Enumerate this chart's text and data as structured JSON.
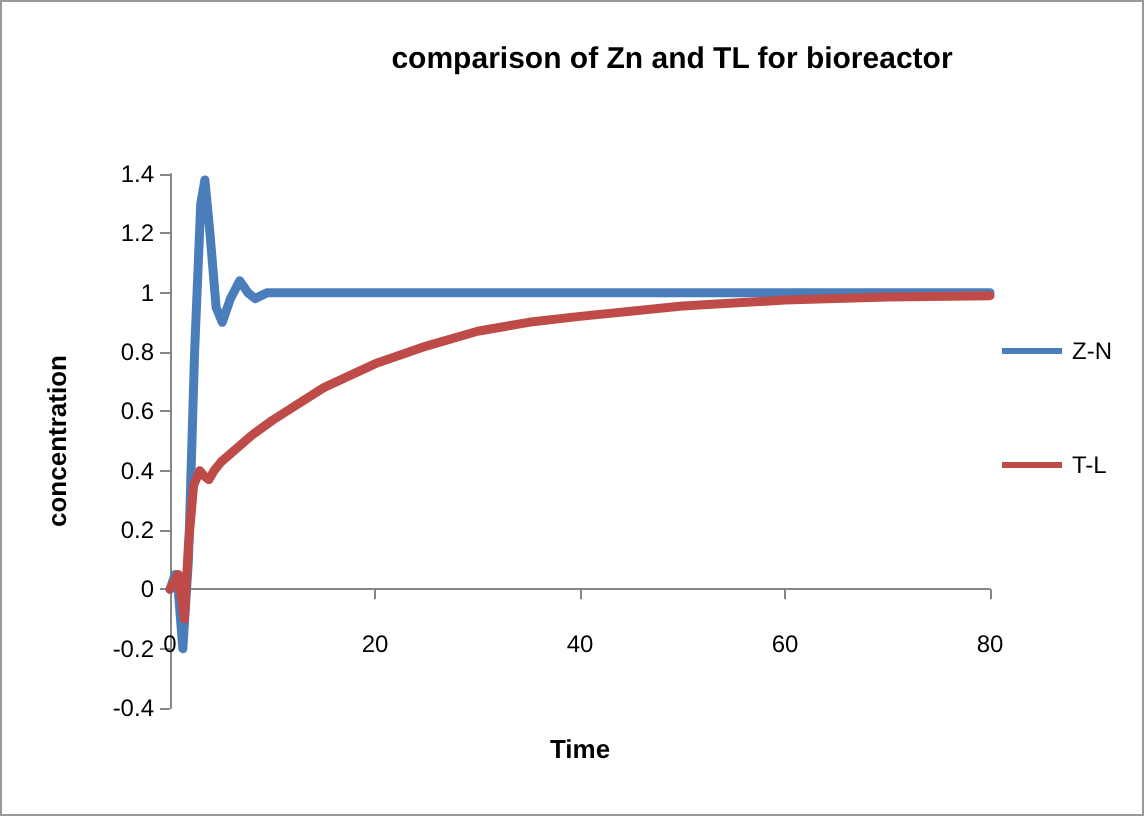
{
  "chart_data": {
    "type": "line",
    "title": "comparison of Zn and TL for bioreactor",
    "xlabel": "Time",
    "ylabel": "concentration",
    "xlim": [
      0,
      80
    ],
    "xticks": [
      0,
      20,
      40,
      60,
      80
    ],
    "ylim": [
      -0.4,
      1.4
    ],
    "yticks": [
      -0.4,
      -0.2,
      0,
      0.2,
      0.4,
      0.6,
      0.8,
      1,
      1.2,
      1.4
    ],
    "legend": "right",
    "marker": "none",
    "line_style": "solid",
    "series": [
      {
        "name": "Z-N",
        "color": "#4a7ebb",
        "x": [
          0,
          0.5,
          0.8,
          1.25,
          1.8,
          2.4,
          3,
          3.4,
          3.9,
          4.5,
          5.1,
          5.9,
          6.8,
          7.6,
          8.3,
          9.5,
          12,
          20,
          40,
          60,
          80
        ],
        "values": [
          0,
          0.05,
          0,
          -0.2,
          0.1,
          0.8,
          1.3,
          1.38,
          1.2,
          0.95,
          0.9,
          0.98,
          1.04,
          1.0,
          0.98,
          1.0,
          1.0,
          1.0,
          1.0,
          1.0,
          1.0
        ]
      },
      {
        "name": "T-L",
        "color": "#be4b48",
        "x": [
          0,
          0.8,
          1.1,
          1.4,
          1.8,
          2.3,
          2.9,
          3.4,
          3.8,
          4.3,
          5,
          8,
          10,
          15,
          20,
          25,
          30,
          35,
          40,
          50,
          60,
          70,
          80
        ],
        "values": [
          0,
          0.05,
          -0.02,
          -0.1,
          0.15,
          0.35,
          0.4,
          0.38,
          0.37,
          0.4,
          0.43,
          0.52,
          0.57,
          0.68,
          0.76,
          0.82,
          0.87,
          0.9,
          0.92,
          0.955,
          0.975,
          0.985,
          0.99
        ]
      }
    ]
  }
}
